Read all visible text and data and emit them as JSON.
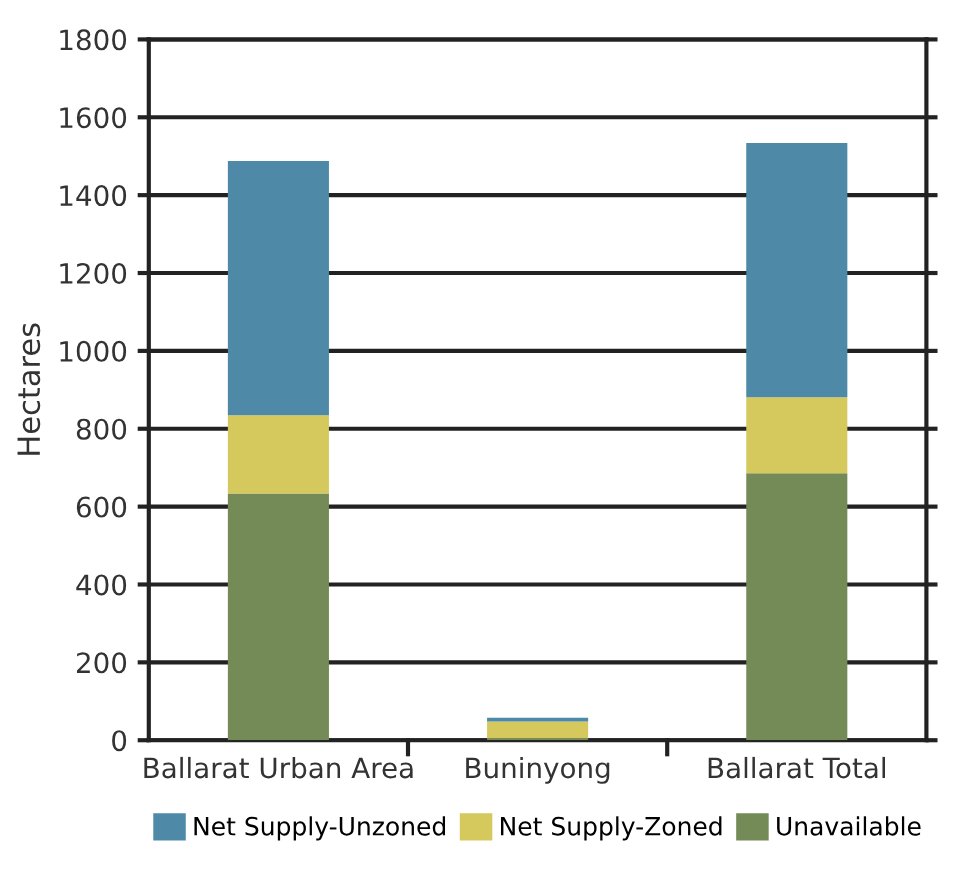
{
  "chart_data": {
    "type": "bar",
    "stacked": true,
    "ylabel": "Hectares",
    "categories": [
      "Ballarat Urban Area",
      "Buninyong",
      "Ballarat Total"
    ],
    "series": [
      {
        "name": "Unavailable",
        "color": "#748a57",
        "values": [
          634,
          5,
          686
        ]
      },
      {
        "name": "Net Supply-Zoned",
        "color": "#d5c95d",
        "values": [
          201,
          43,
          195
        ]
      },
      {
        "name": "Net Supply-Unzoned",
        "color": "#4e8aa8",
        "values": [
          653,
          10,
          653
        ]
      }
    ],
    "ylim": [
      0,
      1800
    ],
    "yticks": [
      0,
      200,
      400,
      600,
      800,
      1000,
      1200,
      1400,
      1600,
      1800
    ],
    "grid": "y",
    "legend": "bottom"
  }
}
